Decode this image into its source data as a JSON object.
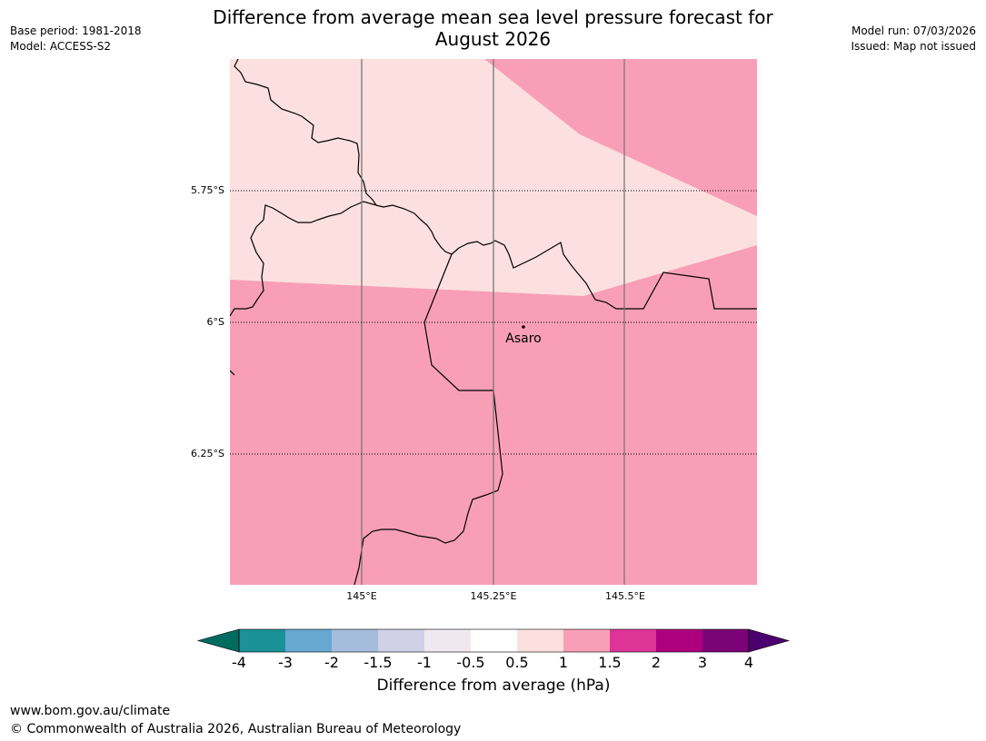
{
  "header": {
    "title_line1": "Difference from average mean sea level pressure forecast for",
    "title_line2": "August 2026",
    "base_period": "Base period: 1981-2018",
    "model": "Model: ACCESS-S2",
    "model_run": "Model run: 07/03/2026",
    "issued": "Issued: Map not issued"
  },
  "map": {
    "lat_labels": [
      "5.75°S",
      "6°S",
      "6.25°S"
    ],
    "lon_labels": [
      "145°E",
      "145.25°E",
      "145.5°E"
    ],
    "place": {
      "name": "Asaro"
    },
    "fill_colors": {
      "light_band": "#fce0df",
      "strong_band": "#f89fb7"
    }
  },
  "colorbar": {
    "label": "Difference from average (hPa)",
    "ticks": [
      "-4",
      "-3",
      "-2",
      "-1.5",
      "-1",
      "-0.5",
      "0.5",
      "1",
      "1.5",
      "2",
      "3",
      "4"
    ],
    "under_color": "#006b5f",
    "over_color": "#4a006e",
    "colors": [
      "#1a9196",
      "#66a8d0",
      "#a6bcdd",
      "#d0d0e7",
      "#efe9ef",
      "#ffffff",
      "#fce0df",
      "#f89fb7",
      "#dd3496",
      "#ad007f",
      "#7b0277"
    ]
  },
  "footer": {
    "website": "www.bom.gov.au/climate",
    "copyright": "© Commonwealth of Australia 2026, Australian Bureau of Meteorology"
  }
}
